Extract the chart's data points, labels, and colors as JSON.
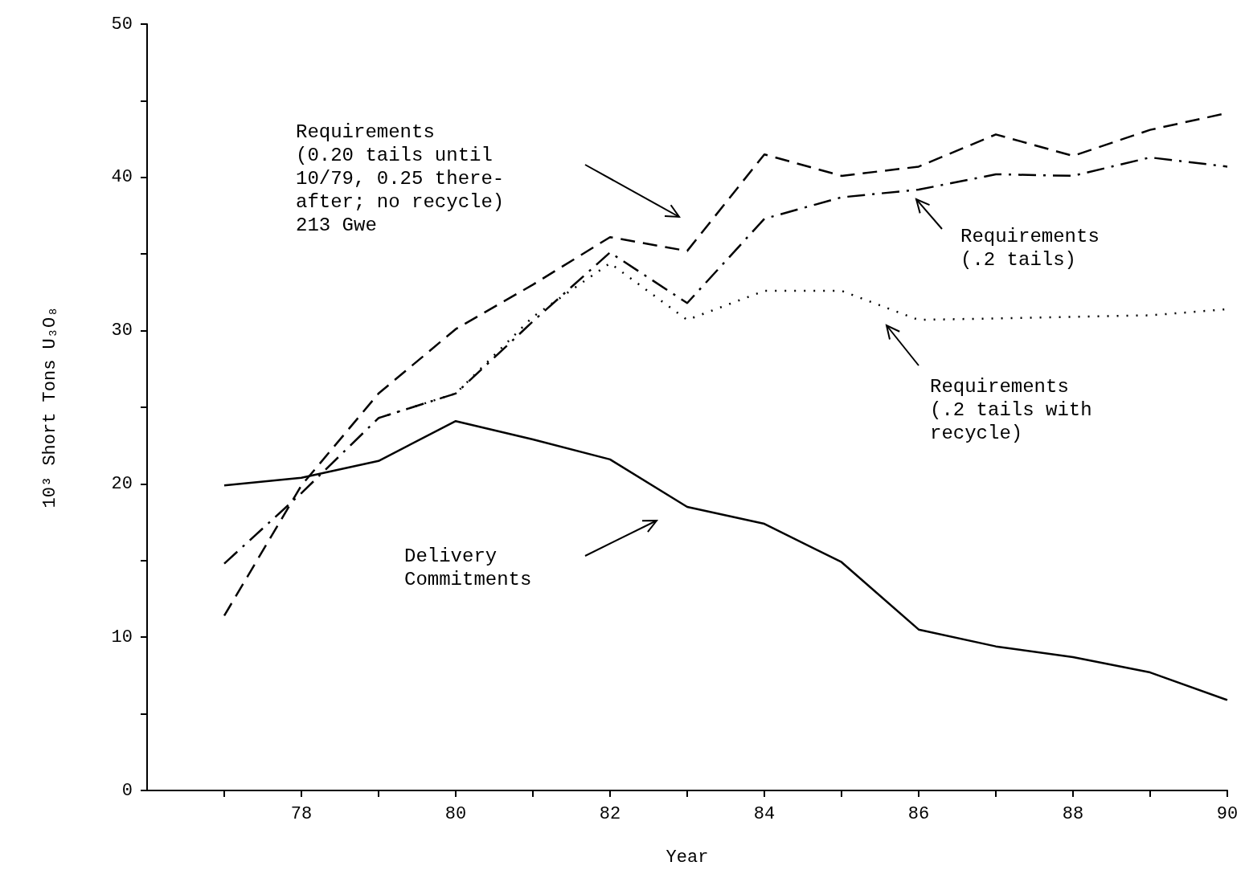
{
  "chart_data": {
    "type": "line",
    "xlabel": "Year",
    "ylabel": "10³ Short Tons U₃O₈",
    "xlim": [
      76,
      90
    ],
    "xticks": [
      {
        "value": 77,
        "label": null
      },
      78,
      {
        "value": 79,
        "label": null
      },
      80,
      {
        "value": 81,
        "label": null
      },
      82,
      {
        "value": 83,
        "label": null
      },
      84,
      {
        "value": 85,
        "label": null
      },
      86,
      {
        "value": 87,
        "label": null
      },
      88,
      {
        "value": 89,
        "label": null
      },
      90
    ],
    "ylim": [
      0,
      50
    ],
    "yticks": [
      0,
      {
        "value": 5,
        "label": null
      },
      10,
      {
        "value": 15,
        "label": null
      },
      20,
      {
        "value": 25,
        "label": null
      },
      30,
      {
        "value": 35,
        "label": null
      },
      40,
      {
        "value": 45,
        "label": null
      },
      50
    ],
    "grid": false,
    "marker": "none",
    "series": [
      {
        "color": "#000000",
        "line_style": "solid",
        "x": [
          77,
          78,
          79,
          80,
          81,
          82,
          83,
          84,
          85,
          86,
          87,
          88,
          89,
          90
        ],
        "values": [
          19.9,
          20.4,
          21.5,
          24.1,
          22.9,
          21.6,
          18.5,
          17.4,
          14.9,
          10.5,
          9.4,
          8.7,
          7.7,
          5.9
        ]
      },
      {
        "color": "#000000",
        "line_style": "dashed",
        "x": [
          77,
          78,
          79,
          80,
          81,
          82,
          83,
          84,
          85,
          86,
          87,
          88,
          89,
          90
        ],
        "values": [
          11.4,
          19.9,
          25.9,
          30.1,
          33,
          36.1,
          35.2,
          41.5,
          40.1,
          40.7,
          42.8,
          41.4,
          43.1,
          44.2
        ]
      },
      {
        "color": "#000000",
        "line_style": "dashdot",
        "x": [
          77,
          78,
          79,
          80,
          81,
          82,
          83,
          84,
          85,
          86,
          87,
          88,
          89,
          90
        ],
        "values": [
          14.8,
          19.4,
          24.3,
          25.9,
          30.6,
          35.1,
          31.8,
          37.3,
          38.7,
          39.2,
          40.2,
          40.1,
          41.3,
          40.7
        ]
      },
      {
        "color": "#000000",
        "line_style": "dotted",
        "x": [
          79,
          80,
          81,
          82,
          83,
          84,
          85,
          86,
          87,
          88,
          89,
          90
        ],
        "values": [
          24.3,
          25.9,
          30.9,
          34.4,
          30.7,
          32.6,
          32.6,
          30.7,
          30.8,
          30.9,
          31,
          31.4
        ]
      }
    ],
    "annotations": [
      "Requirements\n(0.20 tails until\n10/79, 0.25 there-\nafter; no recycle)\n213 Gwe",
      "Requirements\n(.2 tails)",
      "Requirements\n(.2 tails with\nrecycle)",
      "Delivery\nCommitments"
    ]
  }
}
